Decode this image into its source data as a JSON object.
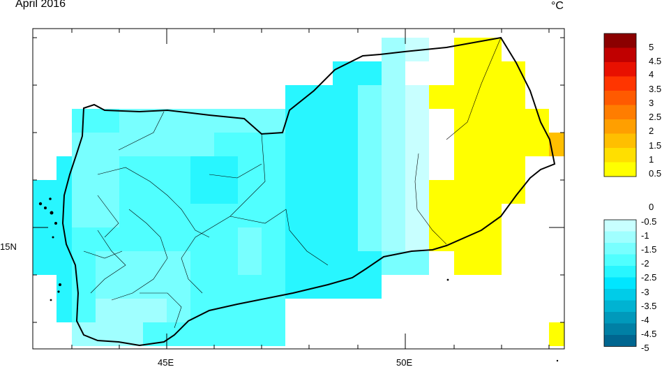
{
  "title": "April 2016",
  "unit": "°C",
  "x_ticks": [
    {
      "label": "45E",
      "value": 45
    },
    {
      "label": "50E",
      "value": 50
    }
  ],
  "y_ticks": [
    {
      "label": "15N",
      "value": 15
    }
  ],
  "colorbar": {
    "labels": [
      "5",
      "4.5",
      "4",
      "3.5",
      "3",
      "2.5",
      "2",
      "1.5",
      "1",
      "0.5",
      "0",
      "-0.5",
      "-1",
      "-1.5",
      "-2",
      "-2.5",
      "-3",
      "-3.5",
      "-4",
      "-4.5",
      "-5"
    ],
    "warm_colors": [
      "#8b0000",
      "#c00000",
      "#e81000",
      "#ff3500",
      "#ff5a00",
      "#ff7d00",
      "#ff9f00",
      "#ffbf00",
      "#ffdf00",
      "#ffff00"
    ],
    "cool_colors": [
      "#c8ffff",
      "#a0ffff",
      "#78ffff",
      "#50ffff",
      "#28f6ff",
      "#00e6ff",
      "#00cce8",
      "#00b3d2",
      "#0099bb",
      "#0080a5",
      "#006690"
    ]
  }
}
